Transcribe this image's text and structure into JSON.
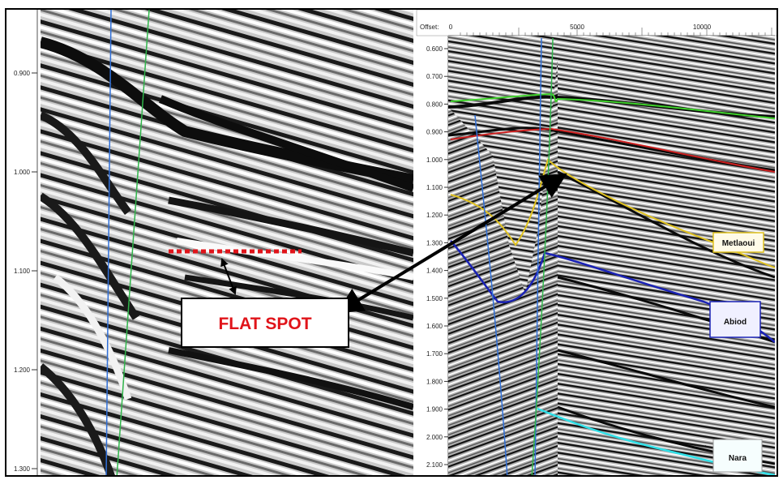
{
  "left_panel": {
    "time_ticks": [
      "0.900",
      "1.000",
      "1.100",
      "1.200",
      "1.300"
    ]
  },
  "right_panel": {
    "offset_label": "Offset:",
    "offset_ticks": [
      "0",
      "5000",
      "10000"
    ],
    "time_ticks": [
      "0.600",
      "0.700",
      "0.800",
      "0.900",
      "1.000",
      "1.100",
      "1.200",
      "1.300",
      "1.400",
      "1.500",
      "1.600",
      "1.700",
      "1.800",
      "1.900",
      "2.000",
      "2.100"
    ]
  },
  "annotation": {
    "flat_spot_label": "FLAT SPOT"
  },
  "horizons": [
    {
      "name": "Metlaoui",
      "color": "#e0c21f"
    },
    {
      "name": "Abiod",
      "color": "#1a22b5"
    },
    {
      "name": "Nara",
      "color": "#2fe0e8"
    }
  ],
  "colors": {
    "flat_spot_marker": "#e0141a",
    "horizon_green": "#3fd12b",
    "horizon_red": "#cc1f1f",
    "fault_blue": "#2f6fd8",
    "fault_green": "#2fb54a"
  }
}
